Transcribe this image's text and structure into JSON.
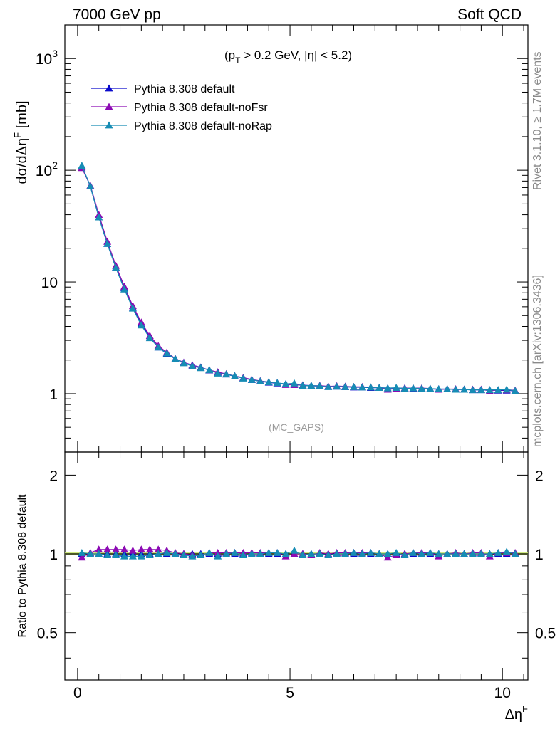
{
  "header": {
    "left": "7000 GeV pp",
    "right": "Soft QCD"
  },
  "side": {
    "rivet": "Rivet 3.1.10, ≥ 1.7M events",
    "mcplots": "mcplots.cern.ch [arXiv:1306.3436]"
  },
  "main": {
    "ylabel": "dσ/dΔη",
    "ylabel_sup": "F",
    "ylabel_unit": " [mb]",
    "cuts": {
      "p1": "(p",
      "sub": "T",
      "p2": " > 0.2 GeV, |η| < 5.2)"
    },
    "watermark": "(MC_GAPS)",
    "yticks": [
      {
        "value": 1000,
        "base": "10",
        "exp": "3"
      },
      {
        "value": 100,
        "base": "10",
        "exp": "2"
      },
      {
        "value": 10,
        "base": "10",
        "exp": ""
      },
      {
        "value": 1,
        "base": "1",
        "exp": ""
      }
    ]
  },
  "ratio": {
    "ylabel": "Ratio to Pythia 8.308 default",
    "yticks": [
      "0.5",
      "1",
      "2"
    ]
  },
  "xaxis": {
    "label": "Δη",
    "label_sup": "F",
    "ticks": [
      "0",
      "5",
      "10"
    ]
  },
  "colors": {
    "default": "#0a0acc",
    "noFsr": "#8c0ab4",
    "noRap": "#168cb4",
    "band": "#c8e66e"
  },
  "chart_data": {
    "type": "line",
    "xlabel": "ΔηF",
    "ylabel": "dσ/dΔηF [mb]",
    "log_y": true,
    "xlim": [
      -0.3,
      10.6
    ],
    "ylim": [
      0.3,
      2000
    ],
    "ratio_ylim": [
      0.33,
      2.45
    ],
    "legend_position": "top-left",
    "x": [
      0.1,
      0.3,
      0.5,
      0.7,
      0.9,
      1.1,
      1.3,
      1.5,
      1.7,
      1.9,
      2.1,
      2.3,
      2.5,
      2.7,
      2.9,
      3.1,
      3.3,
      3.5,
      3.7,
      3.9,
      4.1,
      4.3,
      4.5,
      4.7,
      4.9,
      5.1,
      5.3,
      5.5,
      5.7,
      5.9,
      6.1,
      6.3,
      6.5,
      6.7,
      6.9,
      7.1,
      7.3,
      7.5,
      7.7,
      7.9,
      8.1,
      8.3,
      8.5,
      8.7,
      8.9,
      9.1,
      9.3,
      9.5,
      9.7,
      9.9,
      10.1,
      10.3
    ],
    "series": [
      {
        "name": "Pythia 8.308 default",
        "values": [
          108,
          72,
          38,
          22,
          13.5,
          8.8,
          5.9,
          4.2,
          3.2,
          2.6,
          2.28,
          2.05,
          1.9,
          1.8,
          1.72,
          1.62,
          1.55,
          1.49,
          1.43,
          1.38,
          1.33,
          1.29,
          1.26,
          1.24,
          1.22,
          1.2,
          1.19,
          1.18,
          1.17,
          1.16,
          1.16,
          1.15,
          1.14,
          1.14,
          1.13,
          1.13,
          1.12,
          1.12,
          1.12,
          1.11,
          1.11,
          1.1,
          1.1,
          1.1,
          1.09,
          1.09,
          1.08,
          1.08,
          1.08,
          1.07,
          1.07,
          1.06
        ],
        "ratio": [
          1,
          1,
          1,
          1,
          1,
          1,
          1,
          1,
          1,
          1,
          1,
          1,
          1,
          1,
          1,
          1,
          1,
          1,
          1,
          1,
          1,
          1,
          1,
          1,
          1,
          1,
          1,
          1,
          1,
          1,
          1,
          1,
          1,
          1,
          1,
          1,
          1,
          1,
          1,
          1,
          1,
          1,
          1,
          1,
          1,
          1,
          1,
          1,
          1,
          1,
          1,
          1
        ]
      },
      {
        "name": "Pythia 8.308 default-noFsr",
        "values": [
          105,
          73,
          40,
          23,
          14,
          9.1,
          6.1,
          4.35,
          3.3,
          2.68,
          2.34,
          2.06,
          1.9,
          1.79,
          1.71,
          1.63,
          1.56,
          1.5,
          1.44,
          1.39,
          1.34,
          1.3,
          1.27,
          1.25,
          1.2,
          1.2,
          1.19,
          1.17,
          1.18,
          1.16,
          1.17,
          1.16,
          1.15,
          1.15,
          1.14,
          1.13,
          1.09,
          1.11,
          1.12,
          1.12,
          1.12,
          1.11,
          1.09,
          1.1,
          1.1,
          1.09,
          1.09,
          1.09,
          1.06,
          1.08,
          1.08,
          1.07
        ],
        "ratio": [
          0.97,
          1.01,
          1.04,
          1.04,
          1.04,
          1.04,
          1.03,
          1.04,
          1.04,
          1.04,
          1.03,
          1.01,
          1.0,
          0.99,
          0.99,
          1.01,
          1.01,
          1.01,
          1.01,
          1.01,
          1.01,
          1.01,
          1.01,
          1.01,
          0.98,
          1.0,
          1.0,
          0.99,
          1.01,
          1.0,
          1.01,
          1.01,
          1.01,
          1.01,
          1.01,
          1.0,
          0.97,
          0.99,
          1.0,
          1.01,
          1.01,
          1.01,
          0.98,
          1.0,
          1.01,
          1.0,
          1.01,
          1.01,
          0.98,
          1.01,
          1.01,
          1.01
        ]
      },
      {
        "name": "Pythia 8.308 default-noRap",
        "values": [
          110,
          72,
          38,
          22,
          13.4,
          8.6,
          5.8,
          4.1,
          3.15,
          2.6,
          2.3,
          2.05,
          1.88,
          1.76,
          1.7,
          1.63,
          1.52,
          1.49,
          1.44,
          1.37,
          1.33,
          1.29,
          1.27,
          1.25,
          1.22,
          1.24,
          1.18,
          1.18,
          1.17,
          1.15,
          1.16,
          1.15,
          1.15,
          1.14,
          1.14,
          1.13,
          1.12,
          1.13,
          1.11,
          1.12,
          1.11,
          1.11,
          1.1,
          1.1,
          1.09,
          1.09,
          1.08,
          1.08,
          1.08,
          1.08,
          1.09,
          1.06
        ],
        "ratio": [
          1.01,
          1.0,
          1.0,
          0.99,
          0.99,
          0.98,
          0.98,
          0.98,
          0.99,
          1.0,
          1.01,
          1.0,
          0.99,
          0.98,
          0.99,
          1.01,
          0.98,
          1.0,
          1.01,
          0.99,
          1.0,
          1.0,
          1.01,
          1.01,
          1.0,
          1.03,
          0.99,
          1.0,
          1.0,
          0.99,
          1.0,
          1.0,
          1.01,
          1.0,
          1.01,
          1.0,
          1.0,
          1.01,
          0.99,
          1.01,
          1.0,
          1.01,
          1.0,
          1.0,
          1.0,
          1.0,
          1.0,
          1.0,
          1.0,
          1.01,
          1.02,
          1.0
        ]
      }
    ]
  }
}
